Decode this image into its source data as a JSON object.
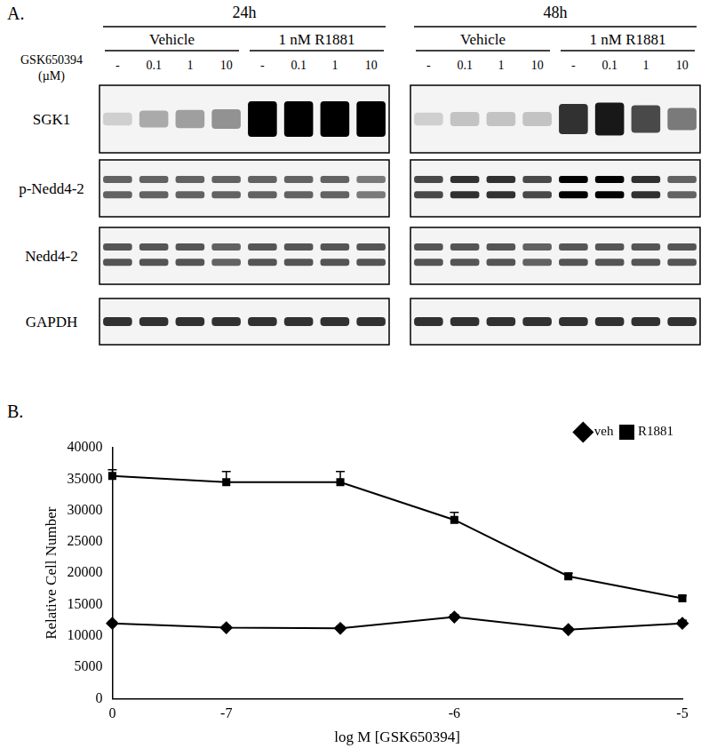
{
  "blot": {
    "label": "A.",
    "drug_label": [
      "GSK650394",
      "(µM)"
    ],
    "rows": [
      "SGK1",
      "p-Nedd4-2",
      "Nedd4-2",
      "GAPDH"
    ],
    "panels": [
      {
        "time": "24h",
        "groups": [
          "Vehicle",
          "1 nM R1881"
        ],
        "lanes": [
          "-",
          "0.1",
          "1",
          "10",
          "-",
          "0.1",
          "1",
          "10"
        ],
        "intensity": [
          [
            0.15,
            0.3,
            0.35,
            0.4,
            1,
            1,
            1,
            1
          ],
          [
            0.6,
            0.6,
            0.6,
            0.6,
            0.6,
            0.6,
            0.6,
            0.5
          ],
          [
            0.65,
            0.65,
            0.65,
            0.6,
            0.65,
            0.65,
            0.65,
            0.65
          ],
          [
            0.8,
            0.8,
            0.8,
            0.8,
            0.8,
            0.8,
            0.8,
            0.8
          ]
        ]
      },
      {
        "time": "48h",
        "groups": [
          "Vehicle",
          "1 nM R1881"
        ],
        "lanes": [
          "-",
          "0.1",
          "1",
          "10",
          "-",
          "0.1",
          "1",
          "10"
        ],
        "intensity": [
          [
            0.15,
            0.2,
            0.2,
            0.2,
            0.8,
            0.9,
            0.7,
            0.5
          ],
          [
            0.7,
            0.8,
            0.8,
            0.7,
            1,
            1,
            0.8,
            0.6
          ],
          [
            0.65,
            0.65,
            0.65,
            0.6,
            0.65,
            0.65,
            0.65,
            0.65
          ],
          [
            0.8,
            0.8,
            0.8,
            0.8,
            0.8,
            0.8,
            0.8,
            0.8
          ]
        ]
      }
    ]
  },
  "chart_data": {
    "type": "line",
    "panel_label": "B.",
    "x_label": "log M [GSK650394]",
    "y_label": "Relative Cell Number",
    "categories": [
      "0",
      "-7",
      null,
      "-6",
      null,
      "-5"
    ],
    "series": [
      {
        "name": "veh",
        "color": "#000000",
        "marker": "diamond",
        "values": [
          12000,
          11300,
          11200,
          13000,
          11000,
          12000
        ],
        "errors": [
          300,
          300,
          300,
          400,
          300,
          500
        ]
      },
      {
        "name": "R1881",
        "color": "#000000",
        "marker": "square",
        "values": [
          35500,
          34500,
          34500,
          28500,
          19500,
          16000
        ],
        "errors": [
          1000,
          1700,
          1700,
          1200,
          500,
          400
        ]
      }
    ],
    "ylim": [
      0,
      40000
    ],
    "yticks": [
      0,
      5000,
      10000,
      15000,
      20000,
      25000,
      30000,
      35000,
      40000
    ],
    "grid": false,
    "legend": "upper right"
  }
}
